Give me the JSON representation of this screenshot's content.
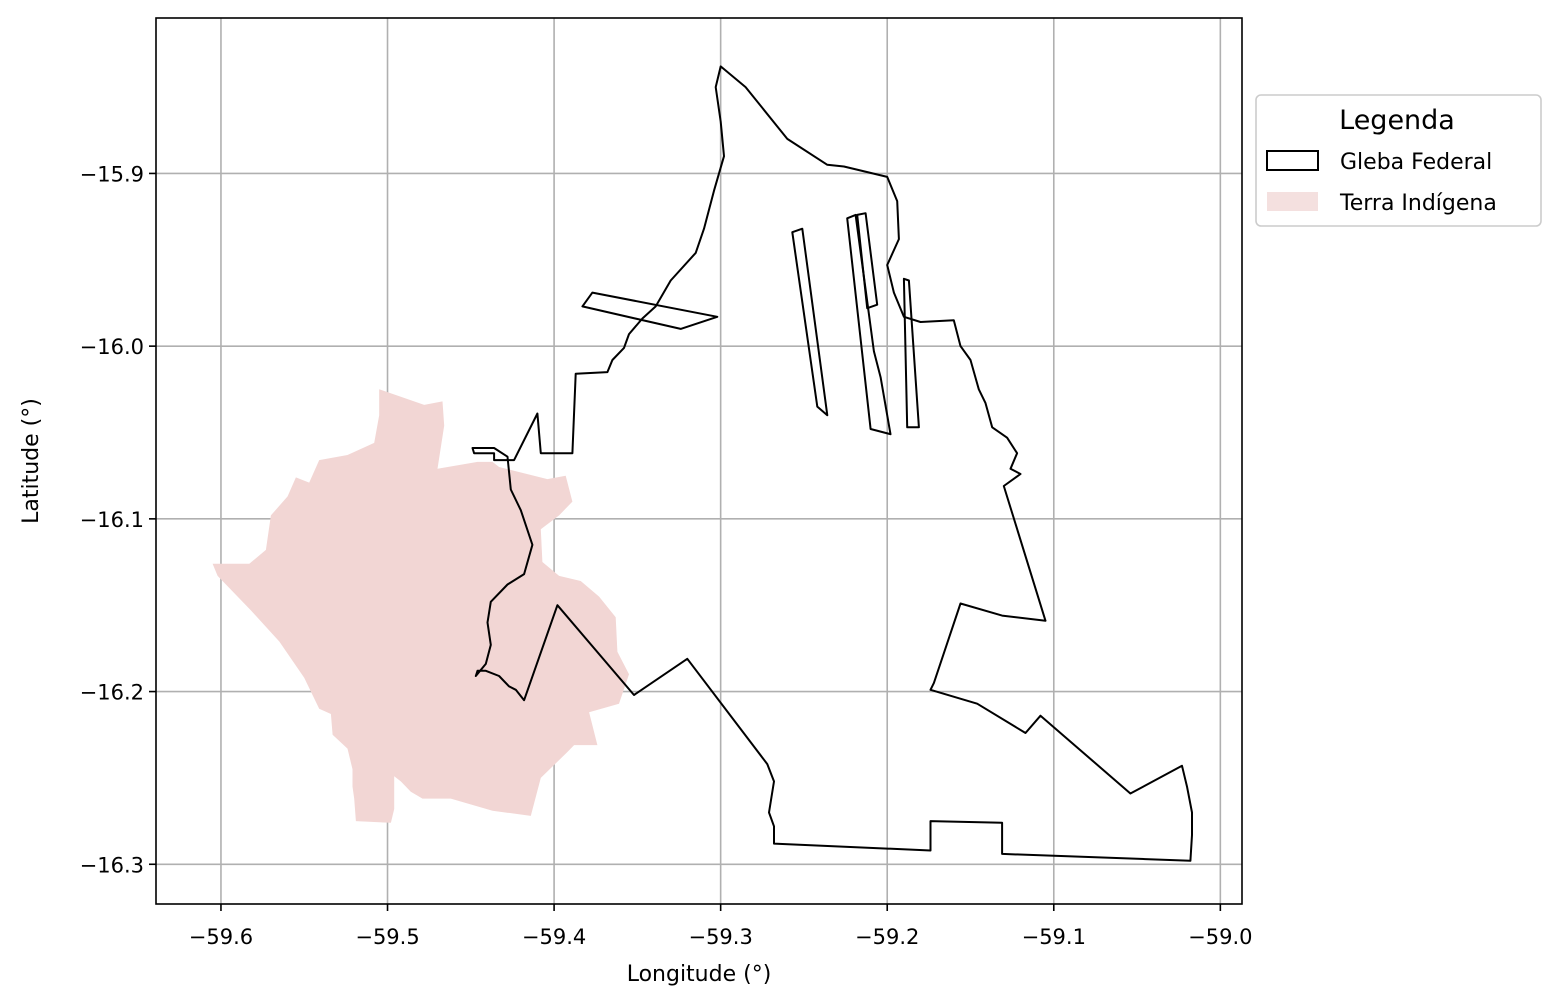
{
  "map": {
    "xlabel": "Longitude (°)",
    "ylabel": "Latitude (°)",
    "x_ticks": [
      -59.6,
      -59.5,
      -59.4,
      -59.3,
      -59.2,
      -59.1,
      -59.0
    ],
    "x_tick_labels": [
      "−59.6",
      "−59.5",
      "−59.4",
      "−59.3",
      "−59.2",
      "−59.1",
      "−59.0"
    ],
    "y_ticks": [
      -15.9,
      -16.0,
      -16.1,
      -16.2,
      -16.3
    ],
    "y_tick_labels": [
      "−15.9",
      "−16.0",
      "−16.1",
      "−16.2",
      "−16.3"
    ],
    "xlim": [
      -59.639,
      -58.987
    ],
    "ylim": [
      -16.323,
      -15.81
    ],
    "grid": true,
    "colors": {
      "gleba_edge": "#000000",
      "indigena_fill": "#f2d6d4",
      "grid": "#b0b0b0"
    }
  },
  "legend": {
    "title": "Legenda",
    "placement": "outside-right-top",
    "items": [
      {
        "label": "Gleba Federal",
        "style": "outline"
      },
      {
        "label": "Terra Indígena",
        "style": "fill"
      }
    ]
  },
  "chart_data": {
    "type": "map",
    "layers": [
      {
        "name": "Gleba Federal",
        "polygons": [
          [
            [
              -59.3,
              -15.838
            ],
            [
              -59.285,
              -15.85
            ],
            [
              -59.26,
              -15.88
            ],
            [
              -59.236,
              -15.895
            ],
            [
              -59.226,
              -15.896
            ],
            [
              -59.2,
              -15.902
            ],
            [
              -59.194,
              -15.916
            ],
            [
              -59.193,
              -15.938
            ],
            [
              -59.2,
              -15.953
            ],
            [
              -59.196,
              -15.969
            ],
            [
              -59.19,
              -15.983
            ],
            [
              -59.18,
              -15.986
            ],
            [
              -59.16,
              -15.985
            ],
            [
              -59.156,
              -16.0
            ],
            [
              -59.15,
              -16.008
            ],
            [
              -59.145,
              -16.025
            ],
            [
              -59.141,
              -16.033
            ],
            [
              -59.137,
              -16.047
            ],
            [
              -59.128,
              -16.053
            ],
            [
              -59.122,
              -16.062
            ],
            [
              -59.126,
              -16.071
            ],
            [
              -59.12,
              -16.074
            ],
            [
              -59.13,
              -16.081
            ],
            [
              -59.105,
              -16.159
            ],
            [
              -59.131,
              -16.156
            ],
            [
              -59.156,
              -16.149
            ],
            [
              -59.172,
              -16.195
            ],
            [
              -59.174,
              -16.199
            ],
            [
              -59.146,
              -16.207
            ],
            [
              -59.117,
              -16.224
            ],
            [
              -59.108,
              -16.214
            ],
            [
              -59.054,
              -16.259
            ],
            [
              -59.023,
              -16.243
            ],
            [
              -59.02,
              -16.255
            ],
            [
              -59.017,
              -16.27
            ],
            [
              -59.017,
              -16.283
            ],
            [
              -59.018,
              -16.298
            ],
            [
              -59.045,
              -16.297
            ],
            [
              -59.131,
              -16.294
            ],
            [
              -59.131,
              -16.276
            ],
            [
              -59.174,
              -16.275
            ],
            [
              -59.174,
              -16.292
            ],
            [
              -59.268,
              -16.288
            ],
            [
              -59.268,
              -16.278
            ],
            [
              -59.271,
              -16.27
            ],
            [
              -59.268,
              -16.252
            ],
            [
              -59.272,
              -16.242
            ],
            [
              -59.32,
              -16.181
            ],
            [
              -59.352,
              -16.202
            ],
            [
              -59.398,
              -16.15
            ],
            [
              -59.418,
              -16.205
            ],
            [
              -59.423,
              -16.199
            ],
            [
              -59.427,
              -16.197
            ],
            [
              -59.433,
              -16.191
            ],
            [
              -59.441,
              -16.188
            ],
            [
              -59.446,
              -16.188
            ],
            [
              -59.447,
              -16.191
            ],
            [
              -59.441,
              -16.184
            ],
            [
              -59.438,
              -16.173
            ],
            [
              -59.44,
              -16.16
            ],
            [
              -59.438,
              -16.148
            ],
            [
              -59.428,
              -16.138
            ],
            [
              -59.418,
              -16.132
            ],
            [
              -59.413,
              -16.115
            ],
            [
              -59.42,
              -16.095
            ],
            [
              -59.426,
              -16.083
            ],
            [
              -59.428,
              -16.064
            ],
            [
              -59.436,
              -16.059
            ],
            [
              -59.449,
              -16.059
            ],
            [
              -59.448,
              -16.062
            ],
            [
              -59.436,
              -16.062
            ],
            [
              -59.436,
              -16.066
            ],
            [
              -59.424,
              -16.066
            ],
            [
              -59.41,
              -16.039
            ],
            [
              -59.408,
              -16.062
            ],
            [
              -59.389,
              -16.062
            ],
            [
              -59.387,
              -16.016
            ],
            [
              -59.368,
              -16.015
            ],
            [
              -59.365,
              -16.008
            ],
            [
              -59.358,
              -16.001
            ],
            [
              -59.355,
              -15.993
            ],
            [
              -59.347,
              -15.984
            ],
            [
              -59.339,
              -15.977
            ],
            [
              -59.33,
              -15.962
            ],
            [
              -59.315,
              -15.946
            ],
            [
              -59.31,
              -15.932
            ],
            [
              -59.304,
              -15.91
            ],
            [
              -59.298,
              -15.89
            ],
            [
              -59.3,
              -15.87
            ],
            [
              -59.303,
              -15.85
            ],
            [
              -59.3,
              -15.838
            ]
          ],
          [
            [
              -59.377,
              -15.969
            ],
            [
              -59.302,
              -15.983
            ],
            [
              -59.324,
              -15.99
            ],
            [
              -59.383,
              -15.977
            ]
          ],
          [
            [
              -59.236,
              -16.04
            ],
            [
              -59.251,
              -15.932
            ],
            [
              -59.257,
              -15.934
            ],
            [
              -59.242,
              -16.035
            ]
          ],
          [
            [
              -59.213,
              -15.923
            ],
            [
              -59.218,
              -15.924
            ],
            [
              -59.212,
              -15.978
            ],
            [
              -59.206,
              -15.976
            ]
          ],
          [
            [
              -59.219,
              -15.924
            ],
            [
              -59.224,
              -15.926
            ],
            [
              -59.21,
              -16.048
            ],
            [
              -59.198,
              -16.051
            ],
            [
              -59.204,
              -16.018
            ],
            [
              -59.208,
              -16.003
            ]
          ],
          [
            [
              -59.19,
              -15.961
            ],
            [
              -59.187,
              -15.962
            ],
            [
              -59.181,
              -16.047
            ],
            [
              -59.188,
              -16.047
            ]
          ]
        ]
      },
      {
        "name": "Terra Indígena",
        "polygons": [
          [
            [
              -59.505,
              -16.025
            ],
            [
              -59.478,
              -16.034
            ],
            [
              -59.467,
              -16.032
            ],
            [
              -59.466,
              -16.046
            ],
            [
              -59.47,
              -16.071
            ],
            [
              -59.446,
              -16.067
            ],
            [
              -59.437,
              -16.067
            ],
            [
              -59.433,
              -16.07
            ],
            [
              -59.404,
              -16.077
            ],
            [
              -59.393,
              -16.075
            ],
            [
              -59.389,
              -16.09
            ],
            [
              -59.397,
              -16.098
            ],
            [
              -59.408,
              -16.106
            ],
            [
              -59.407,
              -16.125
            ],
            [
              -59.397,
              -16.133
            ],
            [
              -59.384,
              -16.136
            ],
            [
              -59.373,
              -16.145
            ],
            [
              -59.363,
              -16.157
            ],
            [
              -59.362,
              -16.177
            ],
            [
              -59.355,
              -16.19
            ],
            [
              -59.361,
              -16.207
            ],
            [
              -59.379,
              -16.212
            ],
            [
              -59.374,
              -16.231
            ],
            [
              -59.388,
              -16.231
            ],
            [
              -59.392,
              -16.235
            ],
            [
              -59.408,
              -16.25
            ],
            [
              -59.414,
              -16.272
            ],
            [
              -59.437,
              -16.269
            ],
            [
              -59.462,
              -16.262
            ],
            [
              -59.479,
              -16.262
            ],
            [
              -59.486,
              -16.258
            ],
            [
              -59.492,
              -16.252
            ],
            [
              -59.496,
              -16.249
            ],
            [
              -59.496,
              -16.268
            ],
            [
              -59.498,
              -16.276
            ],
            [
              -59.519,
              -16.275
            ],
            [
              -59.52,
              -16.262
            ],
            [
              -59.521,
              -16.255
            ],
            [
              -59.521,
              -16.245
            ],
            [
              -59.524,
              -16.233
            ],
            [
              -59.533,
              -16.225
            ],
            [
              -59.534,
              -16.213
            ],
            [
              -59.541,
              -16.21
            ],
            [
              -59.55,
              -16.192
            ],
            [
              -59.565,
              -16.171
            ],
            [
              -59.582,
              -16.153
            ],
            [
              -59.602,
              -16.133
            ],
            [
              -59.605,
              -16.126
            ],
            [
              -59.583,
              -16.126
            ],
            [
              -59.573,
              -16.118
            ],
            [
              -59.57,
              -16.098
            ],
            [
              -59.56,
              -16.087
            ],
            [
              -59.555,
              -16.076
            ],
            [
              -59.547,
              -16.079
            ],
            [
              -59.541,
              -16.066
            ],
            [
              -59.524,
              -16.063
            ],
            [
              -59.508,
              -16.056
            ],
            [
              -59.505,
              -16.04
            ],
            [
              -59.505,
              -16.025
            ]
          ]
        ]
      }
    ]
  }
}
